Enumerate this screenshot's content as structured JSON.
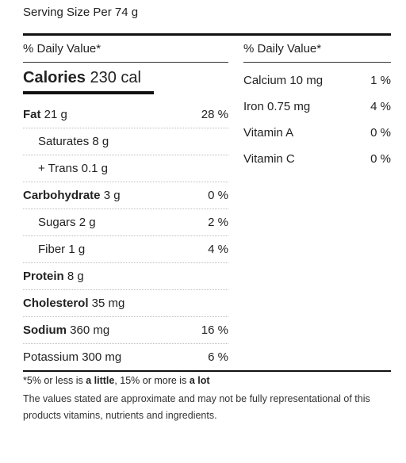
{
  "serving": "Serving Size Per 74 g",
  "left": {
    "dv_header": "% Daily Value*",
    "calories": {
      "label": "Calories",
      "value": "230 cal"
    },
    "rows": [
      {
        "name_bold": "Fat",
        "name_rest": " 21 g",
        "pct": "28 %",
        "indent": false
      },
      {
        "name_bold": "",
        "name_rest": "Saturates 8 g",
        "pct": "",
        "indent": true
      },
      {
        "name_bold": "",
        "name_rest": "+ Trans 0.1 g",
        "pct": "",
        "indent": true
      },
      {
        "name_bold": "Carbohydrate",
        "name_rest": " 3 g",
        "pct": "0 %",
        "indent": false
      },
      {
        "name_bold": "",
        "name_rest": "Sugars 2 g",
        "pct": "2 %",
        "indent": true
      },
      {
        "name_bold": "",
        "name_rest": "Fiber 1 g",
        "pct": "4 %",
        "indent": true
      },
      {
        "name_bold": "Protein",
        "name_rest": " 8 g",
        "pct": "",
        "indent": false
      },
      {
        "name_bold": "Cholesterol",
        "name_rest": " 35 mg",
        "pct": "",
        "indent": false
      },
      {
        "name_bold": "Sodium",
        "name_rest": " 360 mg",
        "pct": "16 %",
        "indent": false
      },
      {
        "name_bold": "",
        "name_rest": "Potassium 300 mg",
        "pct": "6 %",
        "indent": false
      }
    ]
  },
  "right": {
    "dv_header": "% Daily Value*",
    "rows": [
      {
        "name": "Calcium 10 mg",
        "pct": "1 %"
      },
      {
        "name": "Iron 0.75 mg",
        "pct": "4 %"
      },
      {
        "name": "Vitamin A",
        "pct": "0 %"
      },
      {
        "name": "Vitamin C",
        "pct": "0 %"
      }
    ]
  },
  "footnote": {
    "part1": "*5% or less is ",
    "bold1": "a little",
    "part2": ", 15% or more is ",
    "bold2": "a lot"
  },
  "disclaimer": "The values stated are approximate and may not be fully representational of this products vitamins, nutrients and ingredients."
}
